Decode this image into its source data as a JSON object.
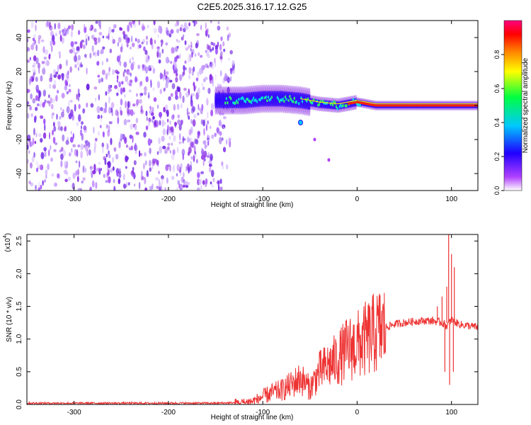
{
  "title": "C2E5.2025.316.17.12.G25",
  "chart_data": [
    {
      "type": "heatmap",
      "title": "C2E5.2025.316.17.12.G25",
      "xlabel": "Height of straight line (km)",
      "ylabel": "Frequency (Hz)",
      "xlim": [
        -350,
        128
      ],
      "ylim": [
        -50,
        50
      ],
      "xticks": [
        -300,
        -200,
        -100,
        0,
        100
      ],
      "yticks": [
        -40,
        -20,
        0,
        20,
        40
      ],
      "description_noise_region": [
        -350,
        -140
      ],
      "signal_trace": [
        {
          "x": -150,
          "y": 3
        },
        {
          "x": -120,
          "y": 3
        },
        {
          "x": -100,
          "y": 4
        },
        {
          "x": -80,
          "y": 4
        },
        {
          "x": -60,
          "y": 3
        },
        {
          "x": -40,
          "y": 1
        },
        {
          "x": -20,
          "y": 0
        },
        {
          "x": 0,
          "y": 2
        },
        {
          "x": 20,
          "y": 0
        },
        {
          "x": 60,
          "y": 0
        },
        {
          "x": 100,
          "y": 0
        },
        {
          "x": 128,
          "y": 0
        }
      ],
      "branch_trace": [
        {
          "x": -60,
          "y": -10
        },
        {
          "x": -45,
          "y": -20
        },
        {
          "x": -30,
          "y": -32
        }
      ],
      "colorbar": {
        "label": "Normalized spectral amplitude",
        "range": [
          0.0,
          1.0
        ],
        "ticks": [
          "0.0",
          "0.2",
          "0.4",
          "0.6",
          "0.8"
        ],
        "colors": [
          "#ffffff",
          "#b040ff",
          "#2000ff",
          "#00c8ff",
          "#00ff40",
          "#ffff00",
          "#ff8000",
          "#ff0000",
          "#ff0080"
        ]
      }
    },
    {
      "type": "line",
      "xlabel": "Height of straight line (km)",
      "ylabel": "SNR (10 * v/v)",
      "exponent_label": "(x10",
      "exponent_power": "4",
      "exponent_close": ")",
      "xlim": [
        -350,
        128
      ],
      "ylim": [
        0,
        2.6
      ],
      "xticks": [
        -300,
        -200,
        -100,
        0,
        100
      ],
      "yticks": [
        "0.0",
        "0.5",
        "1.0",
        "1.5",
        "2.0",
        "2.5"
      ],
      "series": [
        {
          "name": "SNR",
          "color": "#ee3333",
          "x": [
            -350,
            -300,
            -250,
            -200,
            -150,
            -120,
            -110,
            -100,
            -90,
            -80,
            -70,
            -60,
            -50,
            -40,
            -30,
            -20,
            -10,
            0,
            10,
            20,
            30,
            40,
            50,
            60,
            70,
            80,
            90,
            95,
            100,
            105,
            110,
            120,
            128
          ],
          "y": [
            0.02,
            0.02,
            0.02,
            0.02,
            0.02,
            0.03,
            0.05,
            0.12,
            0.18,
            0.22,
            0.3,
            0.4,
            0.25,
            0.5,
            0.6,
            0.7,
            0.85,
            0.9,
            1.0,
            1.1,
            1.18,
            1.23,
            1.25,
            1.27,
            1.28,
            1.28,
            1.25,
            1.2,
            1.3,
            1.25,
            1.22,
            1.2,
            1.18
          ]
        }
      ],
      "spikes": [
        {
          "x": 97,
          "y": 2.6
        },
        {
          "x": 98,
          "y": 0.3
        },
        {
          "x": 100,
          "y": 2.3
        },
        {
          "x": 102,
          "y": 0.5
        },
        {
          "x": 103,
          "y": 2.1
        },
        {
          "x": 95,
          "y": 1.8
        },
        {
          "x": 93,
          "y": 0.5
        },
        {
          "x": 90,
          "y": 1.65
        },
        {
          "x": 85,
          "y": 1.5
        }
      ]
    }
  ]
}
